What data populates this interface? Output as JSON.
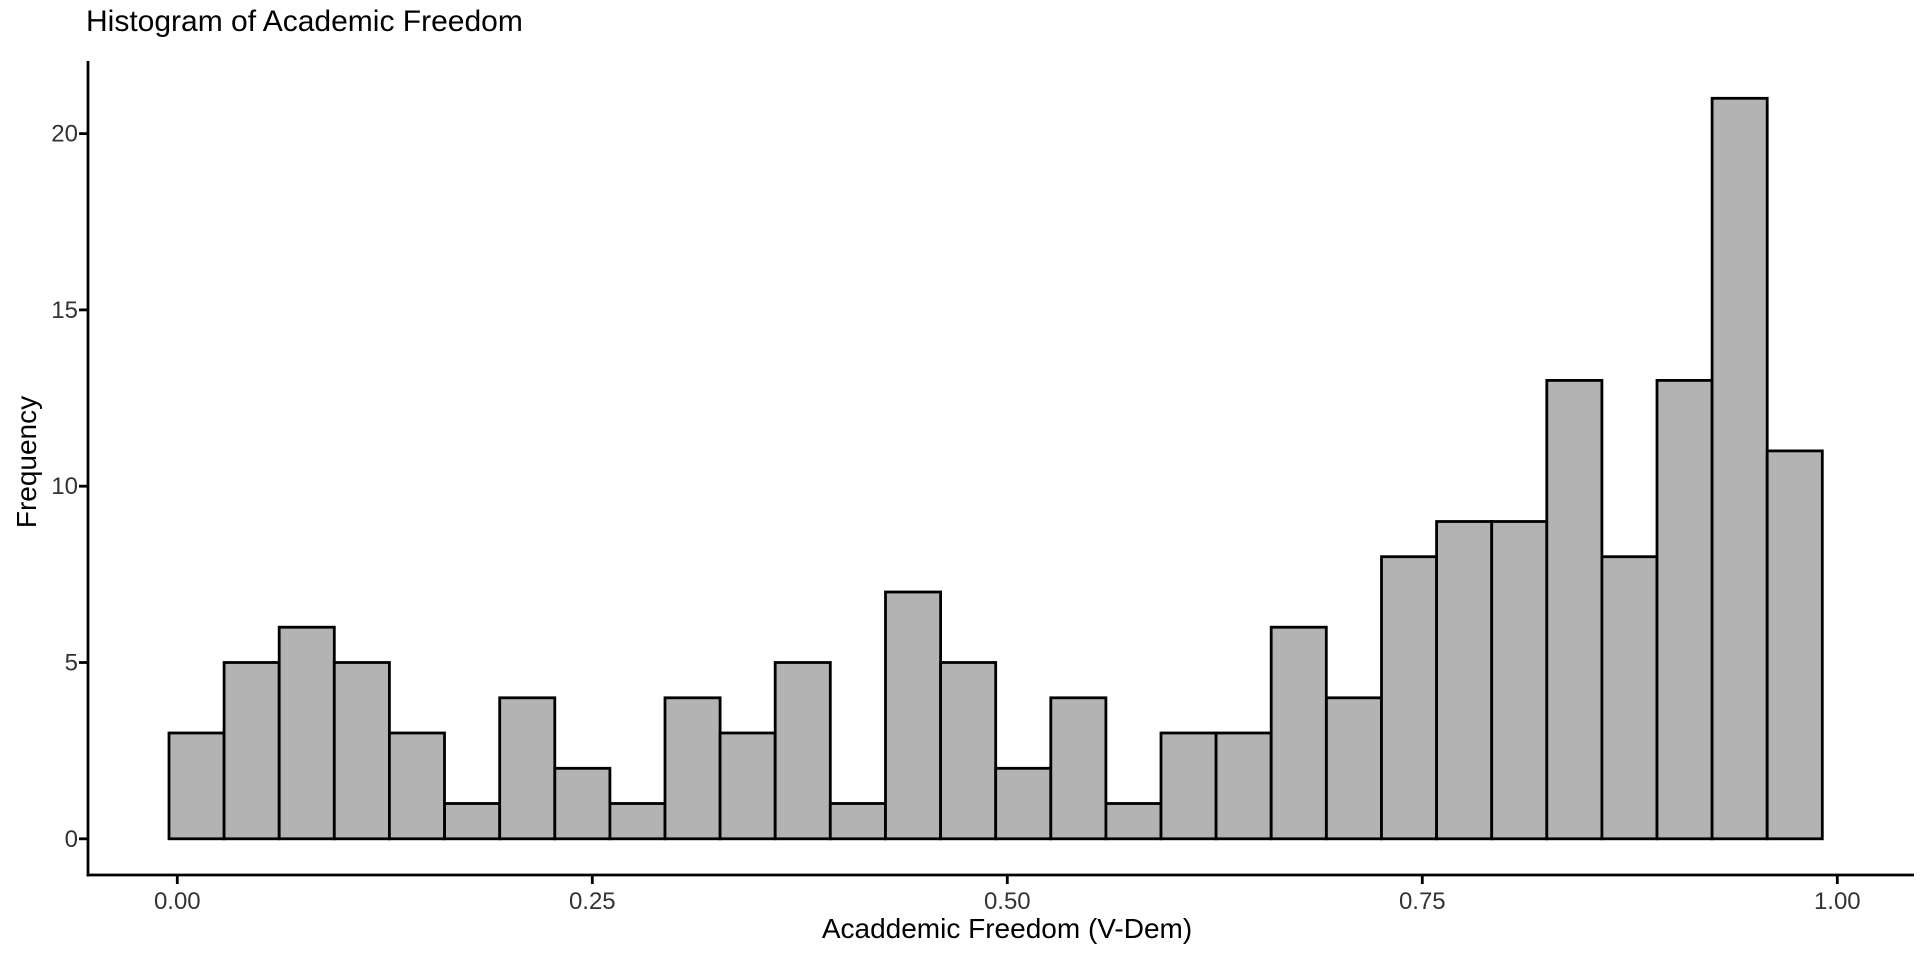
{
  "title": "Histogram of Academic Freedom",
  "chart_data": {
    "type": "bar",
    "subtype": "histogram",
    "title": "Histogram of Academic Freedom",
    "xlabel": "Acaddemic Freedom (V-Dem)",
    "ylabel": "Frequency",
    "bin_start": -0.005,
    "bin_width": 0.0332,
    "frequencies": [
      3,
      5,
      6,
      5,
      3,
      1,
      4,
      2,
      1,
      4,
      3,
      5,
      1,
      7,
      5,
      2,
      4,
      1,
      3,
      3,
      6,
      4,
      8,
      9,
      9,
      13,
      8,
      13,
      21,
      11
    ],
    "total_count": 170,
    "xtick_labels": [
      "0.00",
      "0.25",
      "0.50",
      "0.75",
      "1.00"
    ],
    "xtick_values": [
      0.0,
      0.25,
      0.5,
      0.75,
      1.0
    ],
    "ytick_labels": [
      "0",
      "5",
      "10",
      "15",
      "20"
    ],
    "ytick_values": [
      0,
      5,
      10,
      15,
      20
    ],
    "xlim": [
      -0.054,
      1.046
    ],
    "ylim": [
      0,
      22.05
    ],
    "grid": "off",
    "legend": "none",
    "colors": {
      "bar_fill": "#b3b3b3",
      "bar_stroke": "#000000",
      "axis_line": "#000000",
      "tick_label": "#333333",
      "title_text": "#000000"
    }
  }
}
